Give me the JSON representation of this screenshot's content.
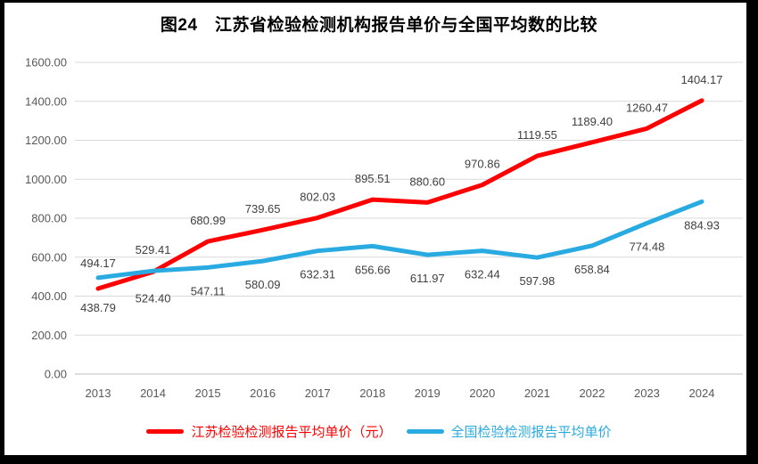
{
  "title": "图24　江苏省检验检测机构报告单价与全国平均数的比较",
  "chart_data": {
    "type": "line",
    "title": "图24　江苏省检验检测机构报告单价与全国平均数的比较",
    "categories": [
      "2013",
      "2014",
      "2015",
      "2016",
      "2017",
      "2018",
      "2019",
      "2020",
      "2021",
      "2022",
      "2023",
      "2024"
    ],
    "series": [
      {
        "name": "江苏检验检测报告平均单价（元）",
        "color": "#ff0000",
        "values": [
          438.79,
          524.4,
          680.99,
          739.65,
          802.03,
          895.51,
          880.6,
          970.86,
          1119.55,
          1189.4,
          1260.47,
          1404.17
        ]
      },
      {
        "name": "全国检验检测报告平均单价",
        "color": "#29abe2",
        "values": [
          494.17,
          529.41,
          547.11,
          580.09,
          632.31,
          656.66,
          611.97,
          632.44,
          597.98,
          658.84,
          774.48,
          884.93
        ]
      }
    ],
    "xlabel": "",
    "ylabel": "",
    "ylim": [
      0,
      1600
    ],
    "ytick_step": 200,
    "ytick_labels": [
      "0.00",
      "200.00",
      "400.00",
      "600.00",
      "800.00",
      "1000.00",
      "1200.00",
      "1400.00",
      "1600.00"
    ],
    "grid": true,
    "legend_position": "bottom",
    "data_labels_shown": true,
    "colors": {
      "gridline": "#d9d9d9",
      "axis_line": "#bfbfbf",
      "tick_label": "#595959",
      "data_label": "#404040",
      "title": "#000000",
      "background": "#ffffff",
      "frame": "#000000"
    }
  }
}
